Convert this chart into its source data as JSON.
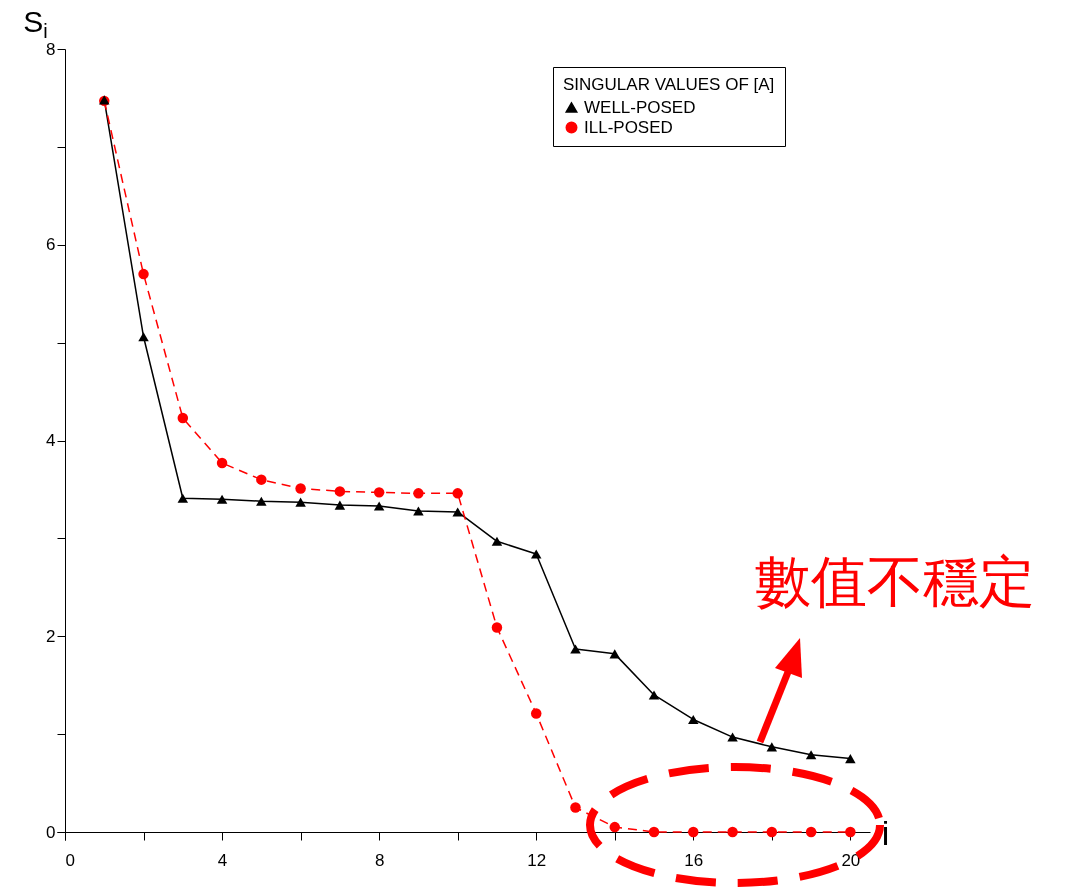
{
  "chart_data": {
    "type": "line",
    "xlabel": "i",
    "ylabel": "S$_{i}$",
    "legend_title": "SINGULAR VALUES OF [A]",
    "x": [
      1,
      2,
      3,
      4,
      5,
      6,
      7,
      8,
      9,
      10,
      11,
      12,
      13,
      14,
      15,
      16,
      17,
      18,
      19,
      20
    ],
    "series": [
      {
        "name": "WELL-POSED",
        "color": "#000000",
        "marker": "triangle",
        "line_style": "solid",
        "values": [
          7.48,
          5.06,
          3.41,
          3.4,
          3.38,
          3.37,
          3.34,
          3.33,
          3.28,
          3.27,
          2.97,
          2.84,
          1.87,
          1.82,
          1.4,
          1.15,
          0.97,
          0.87,
          0.79,
          0.75
        ]
      },
      {
        "name": "ILL-POSED",
        "color": "#ff0000",
        "marker": "circle",
        "line_style": "dashed",
        "values": [
          7.47,
          5.7,
          4.23,
          3.77,
          3.6,
          3.51,
          3.48,
          3.47,
          3.46,
          3.46,
          2.09,
          1.21,
          0.25,
          0.05,
          0,
          0,
          0,
          0,
          0,
          0
        ]
      }
    ],
    "xlim": [
      0,
      20.5
    ],
    "xticks": [
      0,
      {
        "value": 2,
        "label": null
      },
      4,
      {
        "value": 6,
        "label": null
      },
      8,
      {
        "value": 10,
        "label": null
      },
      12,
      {
        "value": 14,
        "label": null
      },
      16,
      {
        "value": 18,
        "label": null
      },
      20
    ],
    "ylim": [
      0,
      8
    ],
    "yticks": [
      0,
      {
        "value": 1,
        "label": null
      },
      2,
      {
        "value": 3,
        "label": null
      },
      4,
      {
        "value": 5,
        "label": null
      },
      6,
      {
        "value": 7,
        "label": null
      },
      8
    ],
    "grid": false,
    "legend": "top right",
    "annotations": [
      "數值不穩定"
    ]
  }
}
